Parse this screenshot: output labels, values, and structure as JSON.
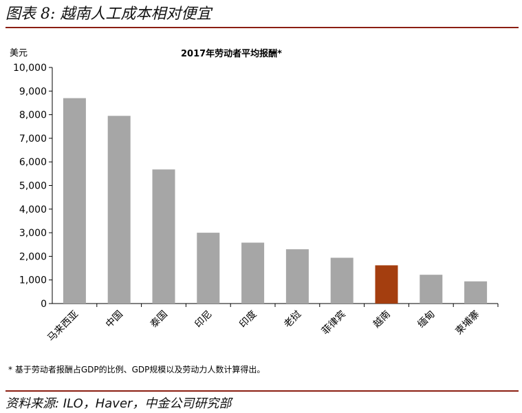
{
  "figure_title": "图表 8: 越南人工成本相对便宜",
  "source": "资料来源: ILO，Haver，中金公司研究部",
  "footnote": "* 基于劳动者报酬占GDP的比例、GDP规模以及劳动力人数计算得出。",
  "chart_data": {
    "type": "bar",
    "title": "2017年劳动者平均报酬*",
    "ylabel": "美元",
    "xlabel": "",
    "ylim": [
      0,
      10000
    ],
    "yticks": [
      0,
      1000,
      2000,
      3000,
      4000,
      5000,
      6000,
      7000,
      8000,
      9000,
      10000
    ],
    "ytick_labels": [
      "0",
      "1,000",
      "2,000",
      "3,000",
      "4,000",
      "5,000",
      "6,000",
      "7,000",
      "8,000",
      "9,000",
      "10,000"
    ],
    "categories": [
      "马来西亚",
      "中国",
      "泰国",
      "印尼",
      "印度",
      "老挝",
      "菲律宾",
      "越南",
      "缅甸",
      "柬埔寨"
    ],
    "values": [
      8700,
      7950,
      5680,
      3000,
      2580,
      2300,
      1940,
      1620,
      1220,
      940
    ],
    "bar_colors": [
      "#a6a6a6",
      "#a6a6a6",
      "#a6a6a6",
      "#a6a6a6",
      "#a6a6a6",
      "#a6a6a6",
      "#a6a6a6",
      "#a43e0f",
      "#a6a6a6",
      "#a6a6a6"
    ],
    "grid": false
  }
}
